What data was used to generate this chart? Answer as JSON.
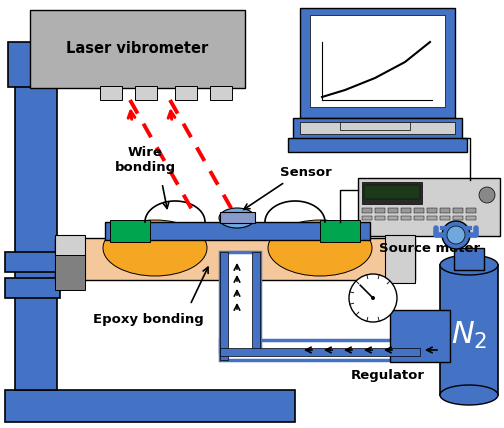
{
  "bg_color": "#ffffff",
  "blue": "#4472c4",
  "light_blue": "#6fa8dc",
  "steel_blue": "#4a86c8",
  "gray": "#b0b0b0",
  "light_gray": "#d0d0d0",
  "dark_gray": "#808080",
  "green": "#00a550",
  "orange": "#f5a623",
  "peach": "#f5c89c",
  "red": "#ff0000",
  "black": "#000000",
  "white": "#ffffff",
  "label_laser": "Laser vibrometer",
  "label_wire": "Wire\nbonding",
  "label_sensor": "Sensor",
  "label_epoxy": "Epoxy bonding",
  "label_source": "Source meter",
  "label_regulator": "Regulator",
  "label_n2": "$N_2$"
}
